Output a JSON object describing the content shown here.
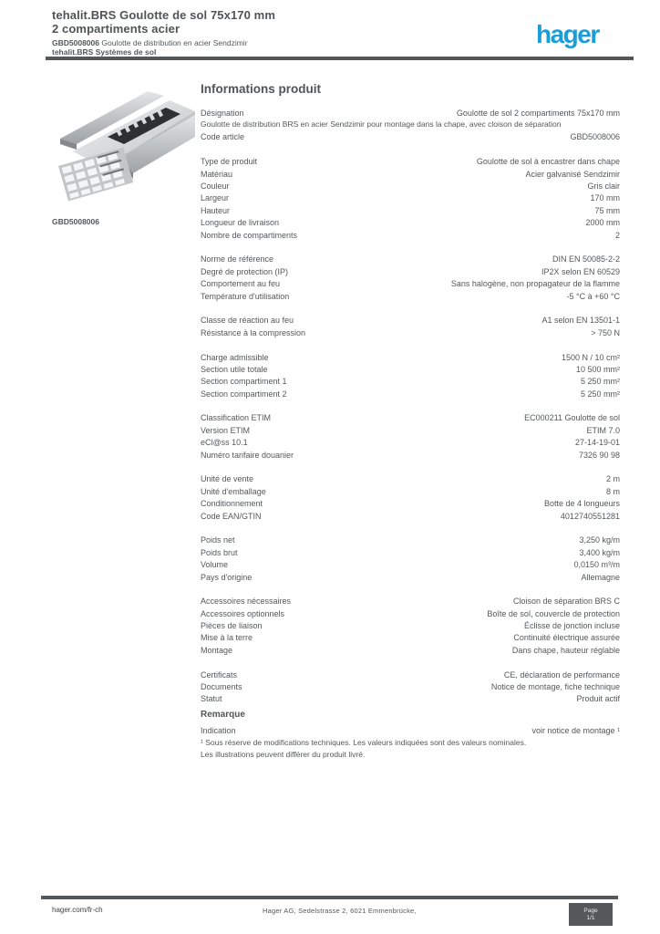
{
  "header": {
    "title_line1": "tehalit.BRS Goulotte de sol 75x170 mm",
    "title_line2": "2 compartiments acier",
    "subtitle": "Goulotte de distribution en acier Sendzimir",
    "subtitle_ref": "GBD5008006",
    "subtitle_line2": "tehalit.BRS Systèmes de sol",
    "logo_text": "hager"
  },
  "colors": {
    "accent": "#1b9dd9",
    "ink": "#54575a"
  },
  "product": {
    "reference": "GBD5008006"
  },
  "main": {
    "section_title": "Informations produit",
    "rows": [
      {
        "t": "row",
        "l": "Désignation",
        "v": "Goulotte de sol 2 compartiments 75x170 mm"
      },
      {
        "t": "para",
        "v": "Goulotte de distribution BRS en acier Sendzimir pour montage dans la chape, avec cloison de séparation"
      },
      {
        "t": "row",
        "l": "Code article",
        "v": "GBD5008006"
      },
      {
        "t": "spacer"
      },
      {
        "t": "row",
        "l": "Type de produit",
        "v": "Goulotte de sol à encastrer dans chape"
      },
      {
        "t": "row",
        "l": "Matériau",
        "v": "Acier galvanisé Sendzimir"
      },
      {
        "t": "row",
        "l": "Couleur",
        "v": "Gris clair"
      },
      {
        "t": "row",
        "l": "Largeur",
        "v": "170 mm"
      },
      {
        "t": "row",
        "l": "Hauteur",
        "v": "75 mm"
      },
      {
        "t": "row",
        "l": "Longueur de livraison",
        "v": "2000 mm"
      },
      {
        "t": "row",
        "l": "Nombre de compartiments",
        "v": "2"
      },
      {
        "t": "spacer"
      },
      {
        "t": "row",
        "l": "Norme de référence",
        "v": "DIN EN 50085-2-2"
      },
      {
        "t": "row",
        "l": "Degré de protection (IP)",
        "v": "IP2X selon EN 60529"
      },
      {
        "t": "row",
        "l": "Comportement au feu",
        "v": "Sans halogène, non propagateur de la flamme"
      },
      {
        "t": "row",
        "l": "Température d'utilisation",
        "v": "-5 °C à +60 °C"
      },
      {
        "t": "spacer"
      },
      {
        "t": "row",
        "l": "Classe de réaction au feu",
        "v": "A1 selon EN 13501-1"
      },
      {
        "t": "row",
        "l": "Résistance à la compression",
        "v": "> 750 N"
      },
      {
        "t": "spacer"
      },
      {
        "t": "row",
        "l": "Charge admissible",
        "v": "1500 N / 10 cm²"
      },
      {
        "t": "row",
        "l": "Section utile totale",
        "v": "10 500 mm²"
      },
      {
        "t": "row",
        "l": "Section compartiment 1",
        "v": "5 250 mm²"
      },
      {
        "t": "row",
        "l": "Section compartiment 2",
        "v": "5 250 mm²"
      },
      {
        "t": "spacer"
      },
      {
        "t": "row",
        "l": "Classification ETIM",
        "v": "EC000211 Goulotte de sol"
      },
      {
        "t": "row",
        "l": "Version ETIM",
        "v": "ETIM 7.0"
      },
      {
        "t": "row",
        "l": "eCl@ss 10.1",
        "v": "27-14-19-01"
      },
      {
        "t": "row",
        "l": "Numéro tarifaire douanier",
        "v": "7326 90 98"
      },
      {
        "t": "spacer"
      },
      {
        "t": "row",
        "l": "Unité de vente",
        "v": "2 m"
      },
      {
        "t": "row",
        "l": "Unité d'emballage",
        "v": "8 m"
      },
      {
        "t": "row",
        "l": "Conditionnement",
        "v": "Botte de 4 longueurs"
      },
      {
        "t": "row",
        "l": "Code EAN/GTIN",
        "v": "4012740551281"
      },
      {
        "t": "spacer"
      },
      {
        "t": "row",
        "l": "Poids net",
        "v": "3,250 kg/m"
      },
      {
        "t": "row",
        "l": "Poids brut",
        "v": "3,400 kg/m"
      },
      {
        "t": "row",
        "l": "Volume",
        "v": "0,0150 m³/m"
      },
      {
        "t": "row",
        "l": "Pays d'origine",
        "v": "Allemagne"
      },
      {
        "t": "spacer"
      },
      {
        "t": "row",
        "l": "Accessoires nécessaires",
        "v": "Cloison de séparation BRS C"
      },
      {
        "t": "row",
        "l": "Accessoires optionnels",
        "v": "Boîte de sol, couvercle de protection"
      },
      {
        "t": "row",
        "l": "Pièces de liaison",
        "v": "Éclisse de jonction incluse"
      },
      {
        "t": "row",
        "l": "Mise à la terre",
        "v": "Continuité électrique assurée"
      },
      {
        "t": "row",
        "l": "Montage",
        "v": "Dans chape, hauteur réglable"
      },
      {
        "t": "spacer"
      },
      {
        "t": "row",
        "l": "Certificats",
        "v": "CE, déclaration de performance"
      },
      {
        "t": "row",
        "l": "Documents",
        "v": "Notice de montage, fiche technique"
      },
      {
        "t": "row",
        "l": "Statut",
        "v": "Produit actif"
      }
    ],
    "note_title": "Remarque",
    "note_rows": [
      {
        "t": "row",
        "l": "Indication",
        "v": "voir notice de montage ¹"
      },
      {
        "t": "para",
        "v": "¹ Sous réserve de modifications techniques. Les valeurs indiquées sont des valeurs nominales."
      },
      {
        "t": "para",
        "v": "Les illustrations peuvent différer du produit livré."
      }
    ]
  },
  "footer": {
    "website": "hager.com/fr-ch",
    "address": "Hager AG, Sedelstrasse 2, 6021 Emmenbrücke,",
    "page_label": "Page",
    "page_value": "1/1"
  }
}
